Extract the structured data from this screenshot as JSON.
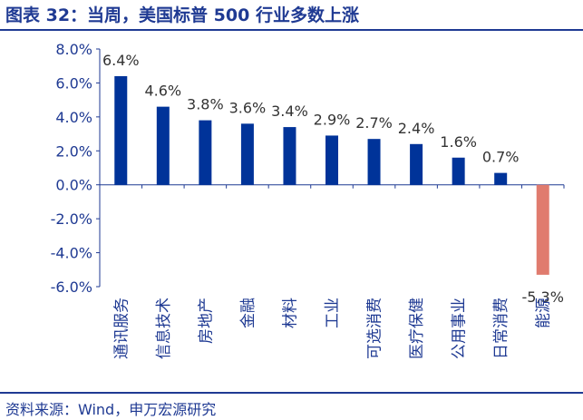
{
  "figure": {
    "title": "图表 32：当周，美国标普 500 行业多数上涨",
    "source": "资料来源：Wind，申万宏源研究"
  },
  "colors": {
    "positive_bar": "#003399",
    "negative_bar": "#e07b6e",
    "text": "#1f3a93"
  },
  "chart_data": {
    "type": "bar",
    "categories": [
      "通讯服务",
      "信息技术",
      "房地产",
      "金融",
      "材料",
      "工业",
      "可选消费",
      "医疗保健",
      "公用事业",
      "日常消费",
      "能源"
    ],
    "values": [
      6.4,
      4.6,
      3.8,
      3.6,
      3.4,
      2.9,
      2.7,
      2.4,
      1.6,
      0.7,
      -5.3
    ],
    "data_labels": [
      "6.4%",
      "4.6%",
      "3.8%",
      "3.6%",
      "3.4%",
      "2.9%",
      "2.7%",
      "2.4%",
      "1.6%",
      "0.7%",
      "-5.3%"
    ],
    "y_ticks": [
      "8.0%",
      "6.0%",
      "4.0%",
      "2.0%",
      "0.0%",
      "-2.0%",
      "-4.0%",
      "-6.0%"
    ],
    "ylim": [
      -6,
      8
    ],
    "grid": false,
    "legend": "none"
  }
}
